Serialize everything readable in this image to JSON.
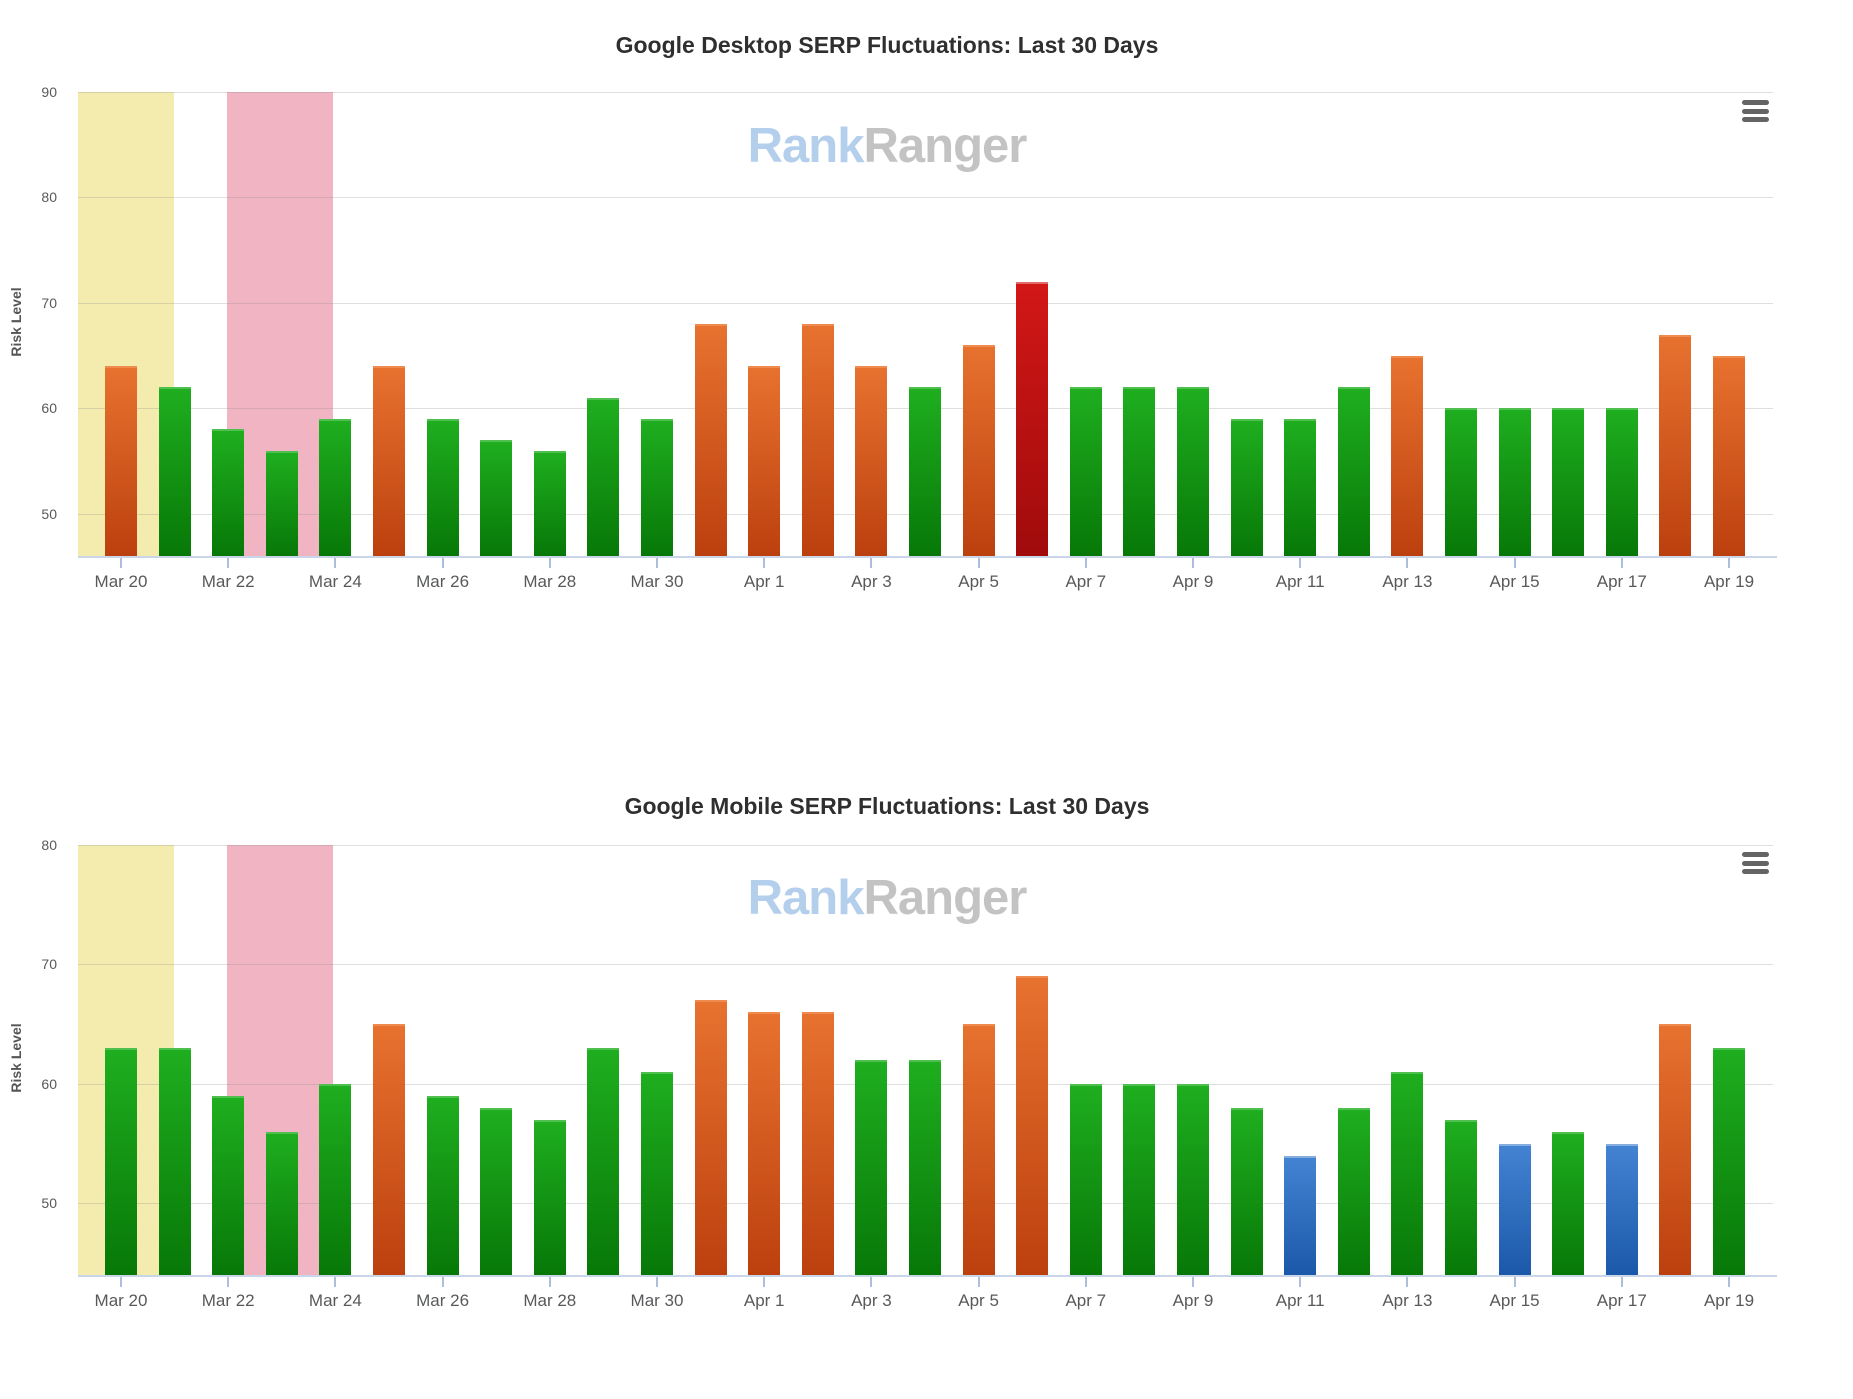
{
  "ui": {
    "watermark": {
      "blue": "Rank",
      "gray": "Ranger"
    },
    "colors": {
      "title": "#2f2f2f",
      "axis_label": "#555555",
      "tick_label": "#58595b",
      "gridline": "rgba(140,140,140,0.28)",
      "baseline": "#c9d6ea",
      "tick": "#aebfdd",
      "watermark_blue": "#b3cfec",
      "watermark_gray": "#c3c3c3",
      "menu_icon": "#646464"
    }
  },
  "palette": {
    "green": {
      "cap": "#4fbf4f",
      "top": "#1fae1f",
      "bottom": "#077807"
    },
    "orange": {
      "cap": "#ef8b4f",
      "top": "#e7722f",
      "bottom": "#bc400e"
    },
    "red": {
      "cap": "#e36a6a",
      "top": "#d21717",
      "bottom": "#a00b0b"
    },
    "blue": {
      "cap": "#85aede",
      "top": "#4383d2",
      "bottom": "#1c58a9"
    }
  },
  "chart_data": [
    {
      "type": "bar",
      "title": "Google Desktop SERP Fluctuations: Last 30 Days",
      "ylabel": "Risk Level",
      "y_ticks": [
        90,
        80,
        70,
        60,
        50
      ],
      "ylim": [
        46,
        90
      ],
      "x_tick_every": 2,
      "categories": [
        "Mar 20",
        "Mar 21",
        "Mar 22",
        "Mar 23",
        "Mar 24",
        "Mar 25",
        "Mar 26",
        "Mar 27",
        "Mar 28",
        "Mar 29",
        "Mar 30",
        "Mar 31",
        "Apr 1",
        "Apr 2",
        "Apr 3",
        "Apr 4",
        "Apr 5",
        "Apr 6",
        "Apr 7",
        "Apr 8",
        "Apr 9",
        "Apr 10",
        "Apr 11",
        "Apr 12",
        "Apr 13",
        "Apr 14",
        "Apr 15",
        "Apr 16",
        "Apr 17",
        "Apr 18",
        "Apr 19"
      ],
      "values": [
        64,
        62,
        58,
        56,
        59,
        64,
        59,
        57,
        56,
        61,
        59,
        68,
        64,
        68,
        64,
        62,
        66,
        72,
        62,
        62,
        62,
        59,
        59,
        62,
        65,
        60,
        60,
        60,
        60,
        67,
        65
      ],
      "bar_colors": [
        "orange",
        "green",
        "green",
        "green",
        "green",
        "orange",
        "green",
        "green",
        "green",
        "green",
        "green",
        "orange",
        "orange",
        "orange",
        "orange",
        "green",
        "orange",
        "red",
        "green",
        "green",
        "green",
        "green",
        "green",
        "green",
        "orange",
        "green",
        "green",
        "green",
        "green",
        "orange",
        "orange"
      ],
      "highlight_bands": [
        {
          "start_day": -0.8,
          "end_day": 0.99,
          "color": "#f3ecae"
        },
        {
          "start_day": 1.98,
          "end_day": 3.96,
          "color": "#f1b4c3"
        }
      ]
    },
    {
      "type": "bar",
      "title": "Google Mobile SERP Fluctuations: Last 30 Days",
      "ylabel": "Risk Level",
      "y_ticks": [
        80,
        70,
        60,
        50
      ],
      "ylim": [
        44,
        80
      ],
      "x_tick_every": 2,
      "categories": [
        "Mar 20",
        "Mar 21",
        "Mar 22",
        "Mar 23",
        "Mar 24",
        "Mar 25",
        "Mar 26",
        "Mar 27",
        "Mar 28",
        "Mar 29",
        "Mar 30",
        "Mar 31",
        "Apr 1",
        "Apr 2",
        "Apr 3",
        "Apr 4",
        "Apr 5",
        "Apr 6",
        "Apr 7",
        "Apr 8",
        "Apr 9",
        "Apr 10",
        "Apr 11",
        "Apr 12",
        "Apr 13",
        "Apr 14",
        "Apr 15",
        "Apr 16",
        "Apr 17",
        "Apr 18",
        "Apr 19"
      ],
      "values": [
        63,
        63,
        59,
        56,
        60,
        65,
        59,
        58,
        57,
        63,
        61,
        67,
        66,
        66,
        62,
        62,
        65,
        69,
        60,
        60,
        60,
        58,
        54,
        58,
        61,
        57,
        55,
        56,
        55,
        65,
        63
      ],
      "bar_colors": [
        "green",
        "green",
        "green",
        "green",
        "green",
        "orange",
        "green",
        "green",
        "green",
        "green",
        "green",
        "orange",
        "orange",
        "orange",
        "green",
        "green",
        "orange",
        "orange",
        "green",
        "green",
        "green",
        "green",
        "blue",
        "green",
        "green",
        "green",
        "blue",
        "green",
        "blue",
        "orange",
        "green"
      ],
      "highlight_bands": [
        {
          "start_day": -0.8,
          "end_day": 0.99,
          "color": "#f3ecae"
        },
        {
          "start_day": 1.98,
          "end_day": 3.96,
          "color": "#f1b4c3"
        }
      ]
    }
  ]
}
